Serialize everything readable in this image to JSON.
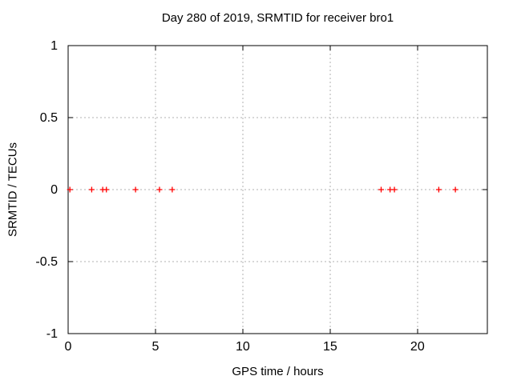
{
  "chart_data": {
    "type": "scatter",
    "title": "Day 280 of 2019, SRMTID for receiver bro1",
    "xlabel": "GPS time / hours",
    "ylabel": "SRMTID / TECUs",
    "xlim": [
      0,
      24
    ],
    "ylim": [
      -1,
      1
    ],
    "xticks": [
      0,
      5,
      10,
      15,
      20
    ],
    "yticks": [
      -1,
      -0.5,
      0,
      0.5,
      1
    ],
    "grid": true,
    "legend_position": "none",
    "marker": "plus",
    "marker_color": "#ff0000",
    "grid_color": "#b0b0b0",
    "border_color": "#000000",
    "text_color": "#000000",
    "background": "#ffffff",
    "series": [
      {
        "name": "SRMTID",
        "x": [
          0.1,
          1.35,
          1.98,
          2.19,
          3.86,
          5.23,
          5.96,
          17.92,
          18.43,
          18.68,
          21.22,
          22.17
        ],
        "y": [
          0,
          0,
          0,
          0,
          0,
          0,
          0,
          0,
          0,
          0,
          0,
          0
        ]
      }
    ]
  }
}
